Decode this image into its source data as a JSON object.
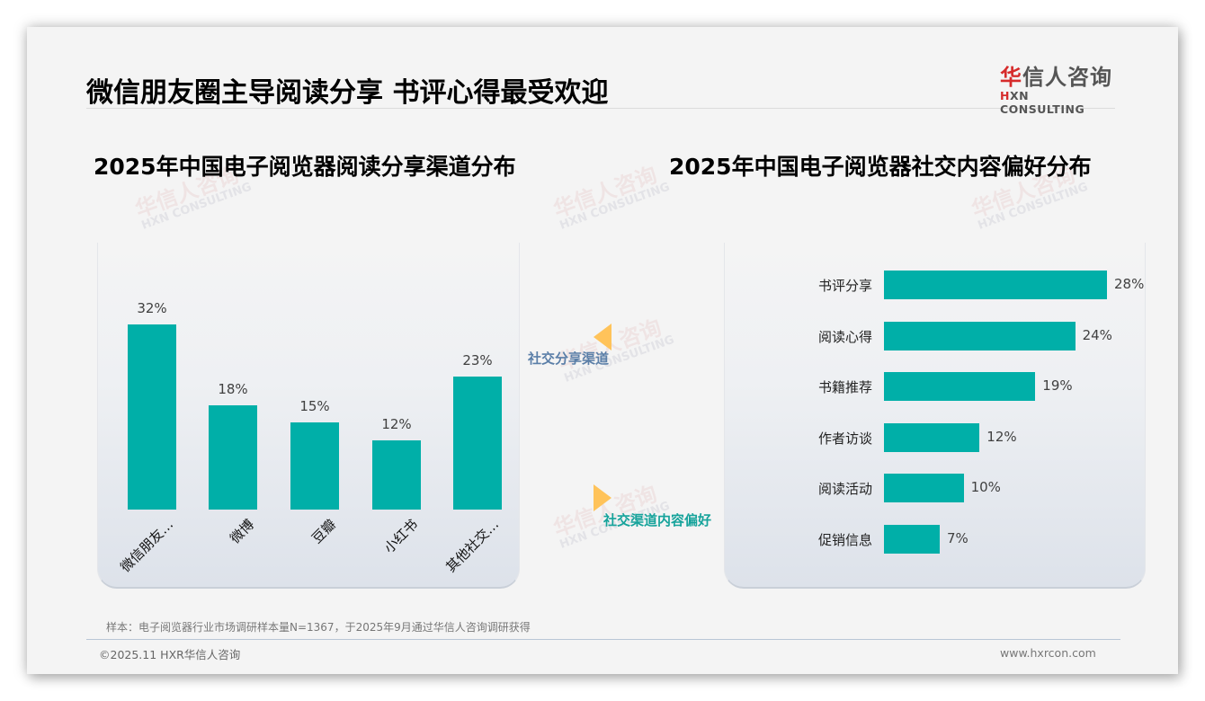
{
  "header": {
    "title": "微信朋友圈主导阅读分享 书评心得最受欢迎",
    "logo": {
      "cn_first": "华",
      "cn_rest": "信人咨询",
      "en_mark": "H",
      "en_rest": "XN CONSULTING"
    }
  },
  "watermark": {
    "cn": "华信人咨询",
    "en": "HXN CONSULTING"
  },
  "connectors": {
    "left_label": "社交分享渠道",
    "right_label": "社交渠道内容偏好",
    "arrow_color": "#FFC35A"
  },
  "colors": {
    "bar": "#00AFA8",
    "left_connector_text": "#5B7FA8",
    "right_connector_text": "#16A39B"
  },
  "chart_data": [
    {
      "type": "bar",
      "orientation": "vertical",
      "title": "2025年中国电子阅览器阅读分享渠道分布",
      "categories": [
        "微信朋友…",
        "微博",
        "豆瓣",
        "小红书",
        "其他社交…"
      ],
      "values": [
        32,
        18,
        15,
        12,
        23
      ],
      "value_labels": [
        "32%",
        "18%",
        "15%",
        "12%",
        "23%"
      ],
      "unit": "%",
      "xlabel": "",
      "ylabel": "",
      "grid": false,
      "legend": "none"
    },
    {
      "type": "bar",
      "orientation": "horizontal",
      "title": "2025年中国电子阅览器社交内容偏好分布",
      "categories": [
        "书评分享",
        "阅读心得",
        "书籍推荐",
        "作者访谈",
        "阅读活动",
        "促销信息"
      ],
      "values": [
        28,
        24,
        19,
        12,
        10,
        7
      ],
      "value_labels": [
        "28%",
        "24%",
        "19%",
        "12%",
        "10%",
        "7%"
      ],
      "unit": "%",
      "xlabel": "",
      "ylabel": "",
      "grid": false,
      "legend": "none"
    }
  ],
  "footer": {
    "source": "样本：电子阅览器行业市场调研样本量N=1367，于2025年9月通过华信人咨询调研获得",
    "copyright": "©2025.11 HXR华信人咨询",
    "website": "www.hxrcon.com"
  }
}
